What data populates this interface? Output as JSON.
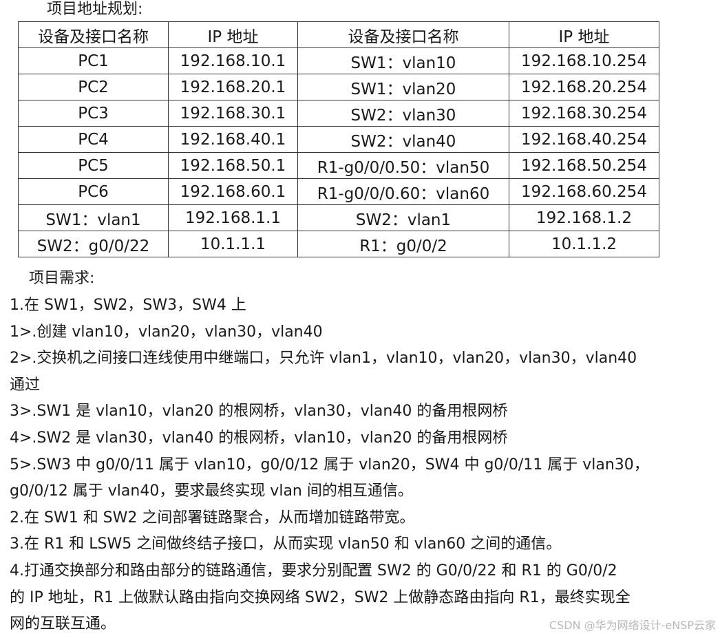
{
  "section1_title": "项目地址规划:",
  "table": {
    "headers": [
      "设备及接口名称",
      "IP 地址",
      "设备及接口名称",
      "IP 地址"
    ],
    "rows": [
      [
        "PC1",
        "192.168.10.1",
        "SW1：vlan10",
        "192.168.10.254"
      ],
      [
        "PC2",
        "192.168.20.1",
        "SW1：vlan20",
        "192.168.20.254"
      ],
      [
        "PC3",
        "192.168.30.1",
        "SW2：vlan30",
        "192.168.30.254"
      ],
      [
        "PC4",
        "192.168.40.1",
        "SW2：vlan40",
        "192.168.40.254"
      ],
      [
        "PC5",
        "192.168.50.1",
        "R1-g0/0/0.50：vlan50",
        "192.168.50.254"
      ],
      [
        "PC6",
        "192.168.60.1",
        "R1-g0/0/0.60：vlan60",
        "192.168.60.254"
      ],
      [
        "SW1：vlan1",
        "192.168.1.1",
        "SW2：vlan1",
        "192.168.1.2"
      ],
      [
        "SW2：g0/0/22",
        "10.1.1.1",
        "R1：g0/0/2",
        "10.1.1.2"
      ]
    ]
  },
  "section2_title": "项目需求:",
  "lines": [
    "1.在 SW1，SW2，SW3，SW4 上",
    "1>.创建 vlan10，vlan20，vlan30，vlan40",
    "2>.交换机之间接口连线使用中继端口，只允许 vlan1，vlan10，vlan20，vlan30，vlan40",
    "通过",
    "3>.SW1 是 vlan10，vlan20 的根网桥，vlan30，vlan40 的备用根网桥",
    "4>.SW2 是 vlan30，vlan40 的根网桥，vlan10，vlan20 的备用根网桥",
    "5>.SW3 中 g0/0/11 属于 vlan10，g0/0/12 属于 vlan20，SW4 中 g0/0/11 属于 vlan30，",
    "g0/0/12 属于 vlan40，要求最终实现 vlan 间的相互通信。",
    "2.在 SW1 和 SW2 之间部署链路聚合，从而增加链路带宽。",
    "3.在 R1 和 LSW5 之间做终结子接口，从而实现 vlan50 和 vlan60 之间的通信。",
    "4.打通交换部分和路由部分的链路通信，要求分别配置 SW2 的 G0/0/22 和 R1 的 G0/0/2",
    "的 IP 地址，R1 上做默认路由指向交换网络 SW2，SW2 上做静态路由指向 R1，最终实现全",
    "网的互联互通。"
  ],
  "watermark": "CSDN @华为网络设计-eNSP云家"
}
